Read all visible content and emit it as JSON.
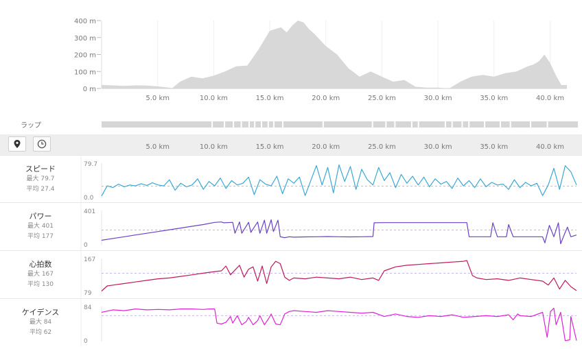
{
  "tools": [
    {
      "name": "location-pin-icon",
      "active": true
    },
    {
      "name": "clock-icon",
      "active": false
    }
  ],
  "lap_label": "ラップ",
  "chart_data": [
    {
      "type": "area",
      "name": "elevation",
      "y_ticks": [
        "400 m",
        "300 m",
        "200 m",
        "100 m",
        "0 m"
      ],
      "y_tick_values": [
        400,
        300,
        200,
        100,
        0
      ],
      "ylim": [
        0,
        400
      ],
      "x_ticks": [
        "5.0 km",
        "10.0 km",
        "15.0 km",
        "20.0 km",
        "25.0 km",
        "30.0 km",
        "35.0 km",
        "40.0 km"
      ],
      "x_tick_values": [
        5,
        10,
        15,
        20,
        25,
        30,
        35,
        40
      ],
      "xlim": [
        0,
        41.5
      ],
      "color": "#d8d8d8",
      "x": [
        0,
        1,
        2,
        3,
        4,
        5,
        6,
        6.3,
        7,
        8,
        9,
        10,
        11,
        12,
        13,
        14,
        15,
        15.5,
        16,
        16.5,
        17,
        17.5,
        18,
        18.5,
        19,
        20,
        21,
        22,
        23,
        24,
        25,
        26,
        27,
        28,
        29,
        30,
        31,
        32,
        33,
        34,
        35,
        36,
        37,
        38,
        38.5,
        39,
        39.5,
        40,
        40.5,
        41,
        41.5
      ],
      "y": [
        20,
        18,
        15,
        18,
        17,
        12,
        5,
        2,
        40,
        70,
        60,
        75,
        100,
        130,
        135,
        230,
        340,
        350,
        360,
        330,
        370,
        400,
        390,
        350,
        320,
        250,
        200,
        120,
        70,
        100,
        70,
        40,
        50,
        10,
        5,
        5,
        0,
        40,
        70,
        80,
        70,
        90,
        100,
        130,
        140,
        160,
        200,
        150,
        80,
        20,
        20
      ]
    },
    {
      "type": "bar",
      "name": "laps",
      "color": "#d6d6d6",
      "gap_km": [
        9.8,
        10.9,
        11.7,
        12.4,
        13.1,
        13.6,
        14.2,
        14.8,
        15.3,
        16.1,
        19.7,
        24.1,
        25.3,
        26.1,
        27.6,
        28.2,
        30.6,
        31.2,
        32.1,
        32.7,
        34.1,
        35.5,
        36.4,
        38.2,
        39.7
      ]
    },
    {
      "type": "line",
      "name": "speed",
      "label": "スピード",
      "max_label": "最大 79.7",
      "avg_label": "平均 27.4",
      "ymax_label": "79.7",
      "ymin_label": "0.0",
      "ylim": [
        0,
        79.7
      ],
      "avg": 27.4,
      "color": "#3aa8d4",
      "x": [
        0,
        0.5,
        1,
        1.5,
        2,
        2.5,
        3,
        3.5,
        4,
        4.5,
        5,
        5.5,
        6,
        6.5,
        7,
        7.5,
        8,
        8.5,
        9,
        9.5,
        10,
        10.5,
        11,
        11.5,
        12,
        12.5,
        13,
        13.5,
        14,
        14.5,
        15,
        15.5,
        16,
        16.5,
        17,
        17.5,
        18,
        18.5,
        19,
        19.5,
        20,
        20.5,
        21,
        21.5,
        22,
        22.5,
        23,
        23.5,
        24,
        24.5,
        25,
        25.5,
        26,
        26.5,
        27,
        27.5,
        28,
        28.5,
        29,
        29.5,
        30,
        30.5,
        31,
        31.5,
        32,
        32.5,
        33,
        33.5,
        34,
        34.5,
        35,
        35.5,
        36,
        36.5,
        37,
        37.5,
        38,
        38.5,
        39,
        39.5,
        40,
        40.5,
        41,
        41.5,
        42
      ],
      "y": [
        5,
        28,
        24,
        32,
        26,
        30,
        28,
        33,
        29,
        35,
        30,
        28,
        42,
        18,
        34,
        26,
        30,
        44,
        20,
        38,
        28,
        46,
        22,
        40,
        30,
        34,
        48,
        8,
        42,
        32,
        28,
        50,
        10,
        44,
        34,
        48,
        6,
        40,
        74,
        30,
        70,
        12,
        76,
        38,
        72,
        20,
        66,
        42,
        30,
        70,
        40,
        58,
        24,
        54,
        34,
        50,
        30,
        48,
        26,
        44,
        32,
        38,
        22,
        46,
        28,
        40,
        24,
        44,
        26,
        36,
        30,
        32,
        20,
        42,
        24,
        36,
        28,
        34,
        6,
        30,
        68,
        20,
        74,
        60,
        30
      ]
    },
    {
      "type": "line",
      "name": "power",
      "label": "パワー",
      "max_label": "最大 401",
      "avg_label": "平均 177",
      "ymax_label": "401",
      "ymin_label": "0",
      "ylim": [
        0,
        401
      ],
      "avg": 177,
      "color": "#6a3fc8",
      "x": [
        0,
        1,
        2,
        3,
        4,
        5,
        6,
        7,
        8,
        9,
        10,
        10.6,
        10.8,
        11.6,
        11.8,
        12.2,
        12.4,
        13.0,
        13.2,
        13.8,
        14.0,
        14.4,
        14.6,
        15.0,
        15.2,
        15.6,
        15.8,
        16.2,
        16.6,
        17,
        18,
        19,
        20,
        21,
        22,
        23,
        24,
        24.1,
        25,
        26,
        27,
        28,
        29,
        30,
        31,
        32,
        32.3,
        32.5,
        33,
        34,
        34.4,
        34.6,
        35,
        35.8,
        36,
        36.4,
        36.6,
        37,
        38,
        39,
        39.2,
        39.6,
        40,
        40.4,
        40.6,
        41,
        41.2,
        41.5,
        42
      ],
      "y": [
        60,
        80,
        100,
        120,
        140,
        160,
        180,
        200,
        220,
        240,
        265,
        270,
        260,
        265,
        140,
        270,
        140,
        265,
        150,
        270,
        140,
        290,
        140,
        295,
        160,
        290,
        100,
        90,
        100,
        95,
        98,
        100,
        102,
        100,
        98,
        100,
        102,
        260,
        262,
        262,
        262,
        262,
        262,
        262,
        262,
        262,
        262,
        100,
        100,
        100,
        100,
        260,
        100,
        100,
        240,
        100,
        100,
        100,
        100,
        100,
        30,
        230,
        100,
        260,
        20,
        150,
        210,
        100,
        120
      ]
    },
    {
      "type": "line",
      "name": "heart_rate",
      "label": "心拍数",
      "max_label": "最大 167",
      "avg_label": "平均 130",
      "ymax_label": "167",
      "ymin_label": "79",
      "ylim": [
        79,
        167
      ],
      "avg": 130,
      "color": "#c0175a",
      "x": [
        0,
        0.5,
        1,
        2,
        3,
        4,
        5,
        6,
        7,
        8,
        9,
        10,
        10.6,
        11,
        11.4,
        11.8,
        12.2,
        12.6,
        13,
        13.4,
        13.8,
        14.2,
        14.6,
        15,
        15.4,
        15.8,
        16.2,
        16.6,
        17,
        18,
        19,
        20,
        21,
        22,
        23,
        24,
        24.5,
        25,
        26,
        27,
        28,
        29,
        30,
        31,
        32,
        32.3,
        32.8,
        33.2,
        34,
        35,
        36,
        37,
        38,
        39,
        39.5,
        40,
        40.5,
        41,
        41.5,
        42
      ],
      "y": [
        85,
        98,
        100,
        104,
        108,
        112,
        116,
        118,
        122,
        126,
        130,
        134,
        136,
        148,
        126,
        138,
        150,
        120,
        140,
        146,
        110,
        148,
        104,
        146,
        160,
        154,
        120,
        112,
        118,
        116,
        120,
        118,
        116,
        120,
        114,
        118,
        112,
        136,
        146,
        150,
        152,
        154,
        156,
        158,
        160,
        162,
        124,
        118,
        114,
        116,
        112,
        118,
        114,
        110,
        100,
        118,
        90,
        112,
        96,
        86
      ]
    },
    {
      "type": "line",
      "name": "cadence",
      "label": "ケイデンス",
      "max_label": "最大 84",
      "avg_label": "平均 62",
      "ymax_label": "84",
      "ymin_label": "0",
      "ylim": [
        0,
        84
      ],
      "avg": 62,
      "color": "#e020d8",
      "x": [
        0,
        1,
        2,
        3,
        4,
        5,
        6,
        7,
        8,
        9,
        9.5,
        10,
        10.2,
        10.6,
        11,
        11.4,
        11.6,
        12,
        12.4,
        12.8,
        13,
        13.4,
        13.8,
        14,
        14.4,
        14.8,
        15,
        15.4,
        15.8,
        16.2,
        16.6,
        17,
        18,
        19,
        20,
        21,
        22,
        23,
        24,
        25,
        26,
        27,
        28,
        29,
        30,
        31,
        32,
        33,
        34,
        35,
        36,
        36.4,
        36.8,
        37,
        38,
        39,
        39.4,
        39.7,
        40,
        40.2,
        40.6,
        41,
        41.4,
        41.5,
        42
      ],
      "y": [
        70,
        76,
        74,
        78,
        76,
        77,
        76,
        78,
        78,
        77,
        78,
        78,
        44,
        42,
        46,
        60,
        44,
        62,
        40,
        48,
        58,
        40,
        50,
        62,
        40,
        56,
        66,
        42,
        40,
        66,
        72,
        74,
        72,
        70,
        74,
        72,
        70,
        68,
        70,
        60,
        66,
        60,
        58,
        62,
        60,
        64,
        58,
        60,
        62,
        60,
        64,
        52,
        66,
        62,
        60,
        70,
        10,
        72,
        80,
        40,
        70,
        2,
        4,
        60,
        2
      ]
    }
  ]
}
